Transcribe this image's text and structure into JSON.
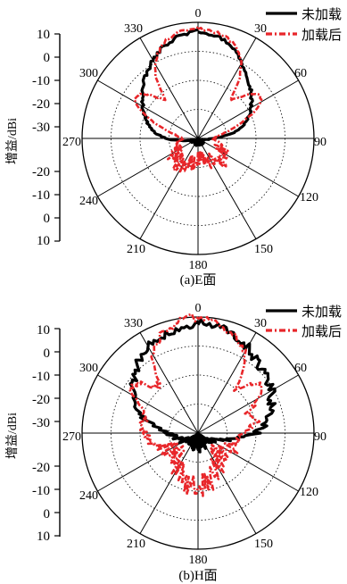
{
  "figure": {
    "captions": [
      "(a)E面",
      "(b)H面"
    ]
  },
  "chart_data": [
    {
      "type": "polar",
      "caption": "(a)E面",
      "ylabel": "增益/dBi",
      "radial_ticks": [
        "10",
        "0",
        "-10",
        "-20",
        "-30",
        "-20",
        "-10",
        "0",
        "10"
      ],
      "rlim": [
        -30,
        10
      ],
      "angle_ticks": [
        "0",
        "30",
        "60",
        "90",
        "120",
        "150",
        "180",
        "210",
        "240",
        "270",
        "300",
        "330"
      ],
      "grid": true,
      "legend_position": "top-right",
      "series": [
        {
          "name": "未加载",
          "color": "#000000",
          "style": "solid",
          "angles": [
            0,
            10,
            20,
            30,
            40,
            50,
            60,
            70,
            80,
            90,
            100,
            110,
            120,
            130,
            140,
            150,
            160,
            170,
            180,
            190,
            200,
            210,
            220,
            230,
            240,
            250,
            260,
            270,
            280,
            290,
            300,
            310,
            320,
            330,
            340,
            350
          ],
          "gain_db": [
            7,
            6,
            4,
            0,
            -3,
            -6,
            -9,
            -12,
            -17,
            -25,
            -28,
            -29,
            -29,
            -29,
            -29,
            -29,
            -29,
            -29,
            -29,
            -29,
            -29,
            -29,
            -29,
            -29,
            -29,
            -28,
            -26,
            -19,
            -14,
            -11,
            -8,
            -5,
            -2,
            1,
            4,
            6
          ]
        },
        {
          "name": "加载后",
          "color": "#e8262a",
          "style": "dash-dot",
          "angles": [
            0,
            10,
            20,
            30,
            35,
            40,
            45,
            50,
            55,
            60,
            65,
            70,
            75,
            80,
            90,
            100,
            110,
            120,
            130,
            140,
            150,
            160,
            170,
            180,
            190,
            200,
            210,
            220,
            230,
            240,
            250,
            260,
            270,
            280,
            285,
            290,
            295,
            300,
            305,
            310,
            315,
            320,
            325,
            330,
            340,
            350
          ],
          "gain_db": [
            8,
            7,
            5,
            0,
            -5,
            -13,
            -10,
            -6,
            -4,
            -5,
            -9,
            -14,
            -18,
            -22,
            -25,
            -23,
            -21,
            -20,
            -19,
            -20,
            -21,
            -22,
            -24,
            -23,
            -22,
            -21,
            -20,
            -19,
            -20,
            -21,
            -22,
            -23,
            -25,
            -22,
            -18,
            -14,
            -9,
            -5,
            -4,
            -6,
            -10,
            -13,
            -5,
            0,
            5,
            7
          ]
        }
      ]
    },
    {
      "type": "polar",
      "caption": "(b)H面",
      "ylabel": "增益/dBi",
      "radial_ticks": [
        "10",
        "0",
        "-10",
        "-20",
        "-30",
        "-20",
        "-10",
        "0",
        "10"
      ],
      "rlim": [
        -30,
        10
      ],
      "angle_ticks": [
        "0",
        "30",
        "60",
        "90",
        "120",
        "150",
        "180",
        "210",
        "240",
        "270",
        "300",
        "330"
      ],
      "grid": true,
      "legend_position": "top-right",
      "series": [
        {
          "name": "未加载",
          "color": "#000000",
          "style": "solid",
          "angles": [
            0,
            10,
            20,
            30,
            40,
            50,
            60,
            70,
            80,
            90,
            100,
            110,
            120,
            130,
            140,
            150,
            160,
            170,
            180,
            190,
            200,
            210,
            220,
            230,
            240,
            250,
            260,
            270,
            280,
            290,
            300,
            310,
            320,
            330,
            340,
            350
          ],
          "gain_db": [
            8,
            7,
            6,
            4,
            2,
            0,
            -1,
            -3,
            -6,
            -10,
            -18,
            -24,
            -26,
            -27,
            -27,
            -27,
            -26,
            -26,
            -26,
            -26,
            -26,
            -27,
            -27,
            -27,
            -26,
            -24,
            -22,
            -20,
            -14,
            -8,
            -4,
            -1,
            2,
            4,
            6,
            7
          ],
          "jitter": 1
        },
        {
          "name": "加载后",
          "color": "#e8262a",
          "style": "dash-dot",
          "angles": [
            0,
            10,
            20,
            30,
            35,
            40,
            45,
            50,
            55,
            60,
            65,
            70,
            75,
            80,
            90,
            100,
            110,
            120,
            130,
            140,
            150,
            160,
            170,
            180,
            190,
            200,
            210,
            220,
            230,
            240,
            250,
            260,
            270,
            275,
            280,
            285,
            290,
            300,
            305,
            310,
            315,
            320,
            325,
            330,
            340,
            350
          ],
          "gain_db": [
            10,
            9,
            6,
            2,
            -4,
            -10,
            -8,
            -3,
            -2,
            -5,
            -10,
            -12,
            -9,
            -10,
            -14,
            -16,
            -18,
            -19,
            -20,
            -19,
            -17,
            -14,
            -12,
            -11,
            -12,
            -14,
            -17,
            -19,
            -20,
            -19,
            -16,
            -13,
            -12,
            -10,
            -9,
            -12,
            -10,
            -5,
            -2,
            -3,
            -8,
            -10,
            -4,
            2,
            6,
            9
          ],
          "jitter": 1
        }
      ]
    }
  ]
}
